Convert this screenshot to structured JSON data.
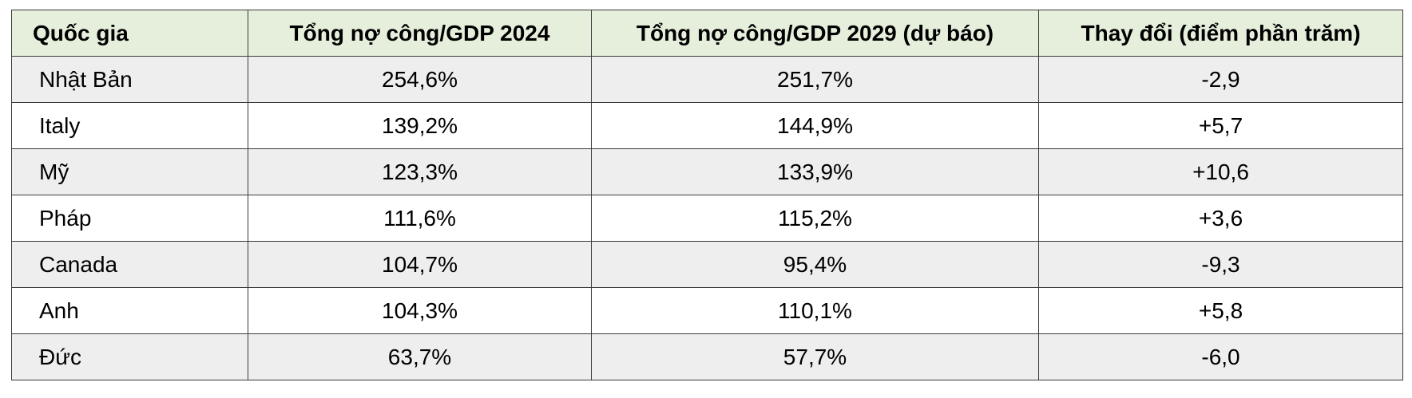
{
  "table": {
    "headers": [
      "Quốc gia",
      "Tổng nợ công/GDP 2024",
      "Tổng nợ công/GDP 2029 (dự báo)",
      "Thay đổi (điểm phần trăm)"
    ],
    "rows": [
      [
        "Nhật Bản",
        "254,6%",
        "251,7%",
        "-2,9"
      ],
      [
        "Italy",
        "139,2%",
        "144,9%",
        "+5,7"
      ],
      [
        "Mỹ",
        "123,3%",
        "133,9%",
        "+10,6"
      ],
      [
        "Pháp",
        "111,6%",
        "115,2%",
        "+3,6"
      ],
      [
        "Canada",
        "104,7%",
        "95,4%",
        "-9,3"
      ],
      [
        "Anh",
        "104,3%",
        "110,1%",
        "+5,8"
      ],
      [
        "Đức",
        "63,7%",
        "57,7%",
        "-6,0"
      ]
    ]
  },
  "colors": {
    "header_background": "#e6efdc",
    "row_shaded": "#eeeeee",
    "row_plain": "#ffffff",
    "border": "#3a3a3a"
  }
}
